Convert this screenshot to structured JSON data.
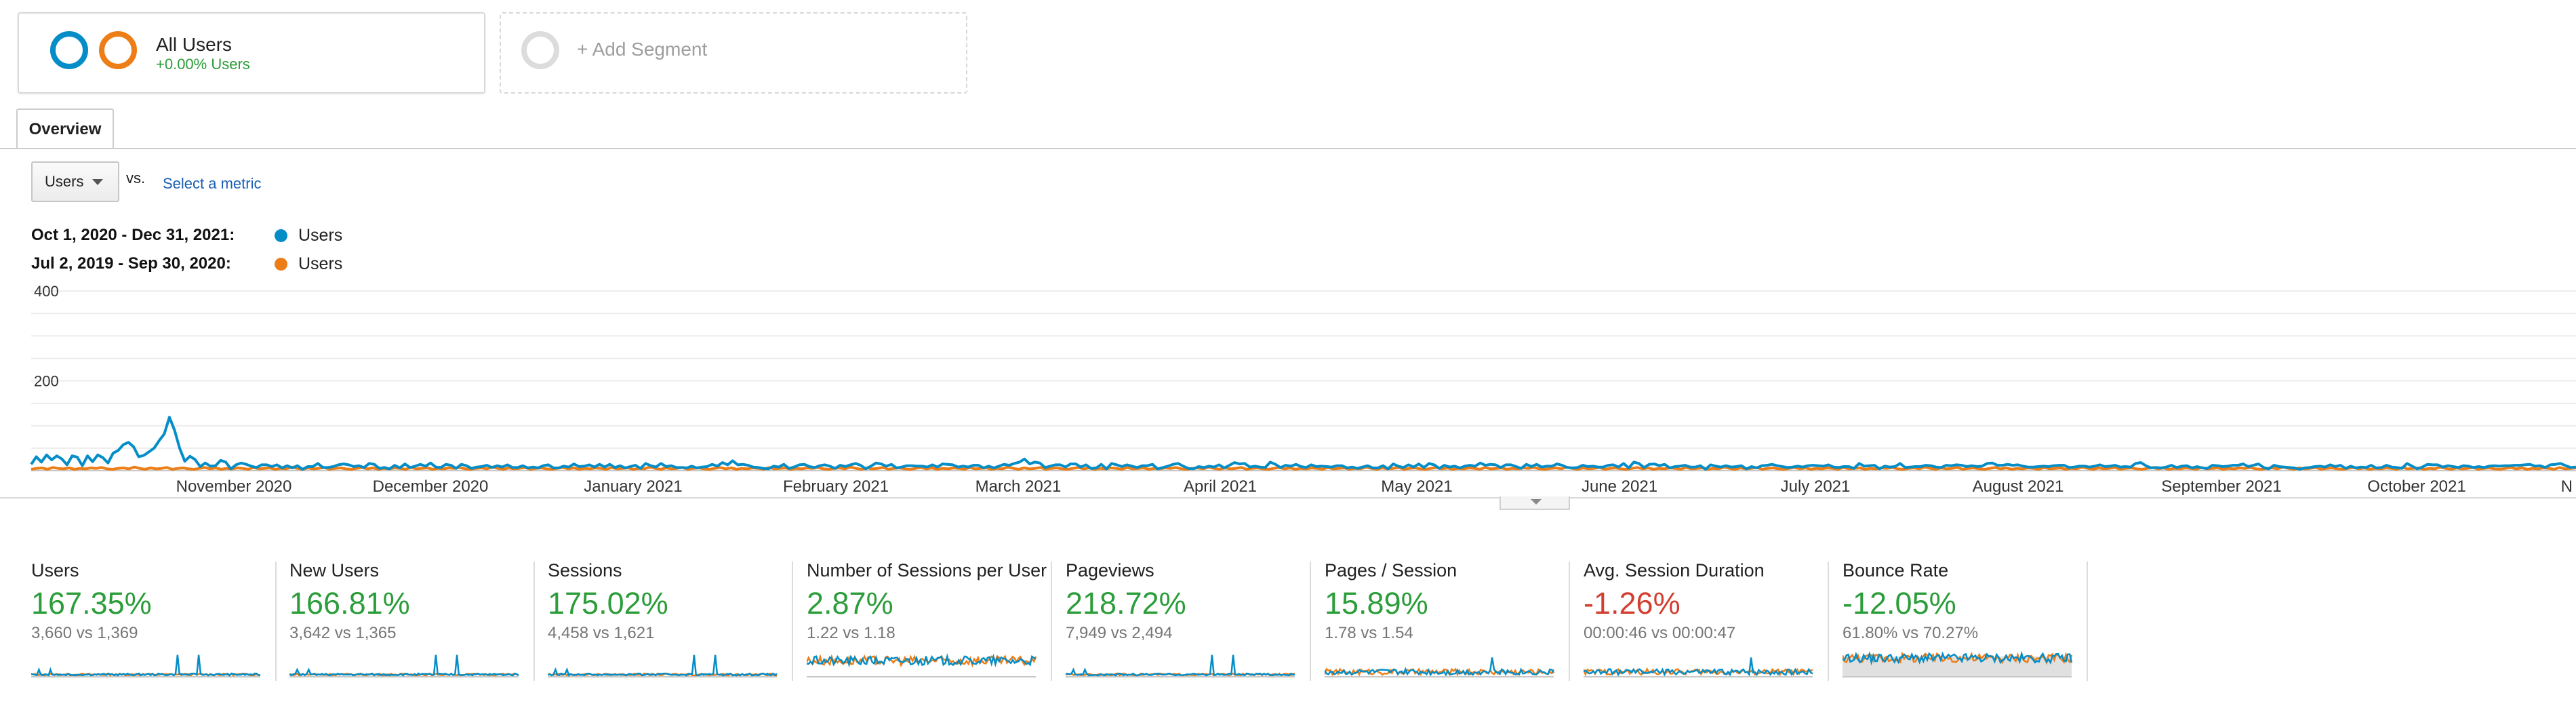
{
  "segments": {
    "all_users": {
      "title": "All Users",
      "subtitle": "+0.00% Users"
    },
    "add_segment": {
      "label": "+ Add Segment"
    }
  },
  "tabs": [
    {
      "label": "Overview"
    }
  ],
  "metric_selector": {
    "selected": "Users",
    "vs_label": "vs.",
    "select_link": "Select a metric"
  },
  "legend": [
    {
      "date_range": "Oct 1, 2020 - Dec 31, 2021:",
      "series": "Users",
      "color": "#058dc7"
    },
    {
      "date_range": "Jul 2, 2019 - Sep 30, 2020:",
      "series": "Users",
      "color": "#ed7e17"
    }
  ],
  "chart_data": {
    "type": "line",
    "y_tick_labels": [
      "400",
      "200"
    ],
    "x_tick_labels": [
      "November 2020",
      "December 2020",
      "January 2021",
      "February 2021",
      "March 2021",
      "April 2021",
      "May 2021",
      "June 2021",
      "July 2021",
      "August 2021",
      "September 2021",
      "October 2021",
      "N"
    ],
    "ylim": [
      0,
      420
    ],
    "series": [
      {
        "color": "#058dc7",
        "values": [
          14,
          31,
          19,
          35,
          24,
          33,
          26,
          13,
          33,
          30,
          11,
          33,
          20,
          35,
          29,
          17,
          39,
          45,
          58,
          63,
          53,
          31,
          34,
          42,
          50,
          67,
          82,
          119,
          90,
          50,
          21,
          32,
          25,
          9,
          17,
          10,
          11,
          23,
          19,
          4,
          13,
          17,
          14,
          10,
          7,
          13,
          13,
          9,
          13,
          6,
          11,
          6,
          11,
          3,
          9,
          9,
          16,
          7,
          7,
          9,
          13,
          15,
          13,
          9,
          11,
          7,
          16,
          14,
          5,
          7,
          4,
          12,
          6,
          15,
          7,
          10,
          14,
          10,
          17,
          8,
          7,
          14,
          12,
          5,
          14,
          11,
          5,
          8,
          9,
          12,
          7,
          11,
          8,
          13,
          7,
          7,
          11,
          6,
          8,
          6,
          11,
          13,
          6,
          6,
          10,
          8,
          15,
          9,
          10,
          13,
          8,
          14,
          8,
          14,
          7,
          11,
          6,
          9,
          12,
          5,
          16,
          11,
          8,
          16,
          9,
          11,
          7,
          7,
          6,
          10,
          6,
          8,
          9,
          14,
          10,
          18,
          13,
          22,
          13,
          14,
          12,
          8,
          7,
          5,
          4,
          10,
          8,
          14,
          5,
          8,
          13,
          14,
          9,
          7,
          11,
          13,
          10,
          5,
          12,
          9,
          13,
          16,
          12,
          4,
          10,
          17,
          15,
          10,
          14,
          6,
          8,
          11,
          11,
          10,
          10,
          8,
          13,
          8,
          15,
          14,
          13,
          8,
          10,
          8,
          12,
          12,
          6,
          10,
          6,
          10,
          14,
          12,
          16,
          19,
          26,
          15,
          19,
          17,
          7,
          10,
          13,
          13,
          8,
          15,
          15,
          8,
          13,
          5,
          6,
          14,
          4,
          16,
          13,
          9,
          13,
          10,
          7,
          11,
          11,
          14,
          4,
          7,
          10,
          14,
          16,
          10,
          5,
          4,
          9,
          7,
          10,
          8,
          13,
          6,
          12,
          18,
          15,
          16,
          8,
          10,
          8,
          7,
          19,
          14,
          7,
          12,
          10,
          14,
          9,
          7,
          13,
          9,
          10,
          9,
          8,
          11,
          11,
          6,
          8,
          5,
          8,
          11,
          6,
          6,
          11,
          4,
          15,
          10,
          7,
          13,
          8,
          15,
          7,
          16,
          13,
          5,
          12,
          8,
          10,
          6,
          10,
          12,
          10,
          17,
          12,
          14,
          13,
          7,
          13,
          13,
          9,
          5,
          14,
          9,
          14,
          8,
          10,
          10,
          15,
          12,
          7,
          6,
          7,
          12,
          9,
          10,
          8,
          8,
          12,
          13,
          8,
          16,
          6,
          19,
          16,
          7,
          14,
          15,
          11,
          14,
          6,
          9,
          10,
          12,
          8,
          8,
          11,
          3,
          13,
          10,
          8,
          11,
          8,
          9,
          11,
          4,
          9,
          6,
          11,
          12,
          14,
          11,
          9,
          7,
          8,
          10,
          8,
          11,
          12,
          11,
          10,
          13,
          8,
          7,
          9,
          9,
          5,
          16,
          10,
          11,
          12,
          4,
          10,
          8,
          9,
          16,
          7,
          8,
          9,
          9,
          12,
          11,
          8,
          7,
          12,
          11,
          13,
          12,
          9,
          11,
          9,
          10,
          16,
          17,
          12,
          12,
          14,
          12,
          13,
          10,
          8,
          8,
          9,
          10,
          9,
          11,
          12,
          12,
          7,
          8,
          10,
          10,
          8,
          10,
          13,
          9,
          10,
          12,
          8,
          9,
          8,
          16,
          18,
          11,
          6,
          7,
          6,
          8,
          12,
          7,
          10,
          11,
          6,
          9,
          6,
          5,
          12,
          11,
          9,
          10,
          12,
          12,
          15,
          9,
          12,
          15,
          7,
          4,
          12,
          9,
          8,
          7,
          6,
          3,
          6,
          7,
          9,
          10,
          8,
          13,
          9,
          12,
          5,
          10,
          6,
          8,
          7,
          12,
          6,
          7,
          12,
          8,
          7,
          5,
          16,
          10,
          4,
          8,
          14,
          13,
          13,
          8,
          11,
          9,
          7,
          11,
          10,
          7,
          9,
          7,
          10,
          11,
          10,
          11,
          11,
          12,
          12,
          13,
          14,
          10,
          11,
          7,
          13,
          14,
          16,
          11,
          7,
          8
        ]
      },
      {
        "color": "#ed7e17",
        "values": [
          3,
          5,
          6,
          3,
          7,
          5,
          4,
          6,
          3,
          5,
          4,
          6,
          5,
          7,
          4,
          3,
          5,
          6,
          4,
          8,
          5,
          3,
          6,
          4,
          5,
          7,
          3,
          5,
          6,
          4,
          3,
          5,
          7,
          4,
          6,
          3,
          5,
          4,
          6,
          5,
          3,
          7,
          4,
          5,
          6,
          3,
          5,
          4,
          8,
          5,
          3,
          6,
          4,
          5,
          7,
          3,
          5,
          6,
          4,
          3,
          5,
          7,
          4,
          6,
          3,
          5,
          4,
          6,
          5,
          3,
          7,
          4,
          5,
          6,
          3,
          5,
          4,
          6,
          5,
          7,
          4,
          3,
          5,
          6,
          4,
          8,
          5,
          3,
          6,
          4,
          5,
          7,
          3,
          5,
          6,
          4,
          3,
          5,
          7,
          4,
          6,
          3,
          5,
          4,
          6,
          5,
          3,
          7,
          4,
          5,
          6,
          3,
          5,
          4,
          8,
          5,
          3,
          6,
          4,
          5,
          7,
          3,
          5,
          6,
          4,
          3,
          5,
          7,
          4,
          6,
          3,
          5,
          4,
          6,
          5,
          3,
          7,
          4,
          5,
          6,
          3,
          5,
          4,
          6,
          5,
          7,
          4,
          3,
          5,
          6,
          4,
          8,
          5,
          3,
          6,
          4,
          5,
          7,
          3,
          5,
          6,
          4,
          3,
          5,
          7,
          4,
          6,
          3,
          5,
          4,
          6,
          5,
          3,
          7,
          4,
          5,
          6,
          3,
          5,
          4,
          8,
          5,
          3,
          6,
          4,
          5,
          7,
          3,
          5,
          6,
          4,
          3,
          5,
          7,
          4,
          6,
          3,
          5,
          4,
          6,
          5,
          3,
          7,
          4,
          5,
          6,
          3,
          5,
          4,
          6,
          5,
          7,
          4,
          3,
          5,
          6,
          4,
          8,
          5,
          3,
          6,
          4,
          5,
          7,
          3,
          5,
          6,
          4,
          3,
          5,
          7,
          4,
          6,
          3,
          5,
          4,
          6,
          5,
          3,
          7,
          4,
          5,
          6,
          3,
          5,
          4,
          8,
          5,
          3,
          6,
          4,
          5,
          7,
          3,
          5,
          6,
          4,
          3,
          5,
          7,
          4,
          6,
          3,
          5,
          4,
          6,
          5,
          3,
          7,
          4,
          5,
          6,
          3,
          5,
          4,
          6,
          5,
          7,
          4,
          3,
          5,
          6,
          4,
          8,
          5,
          3,
          6,
          4,
          5,
          7,
          3,
          5,
          6,
          4,
          3,
          5,
          7,
          4,
          6,
          3,
          5,
          4,
          6,
          5,
          3,
          7,
          4,
          5,
          6,
          3,
          5,
          4,
          8,
          5,
          3,
          6,
          4,
          5,
          7,
          3,
          5,
          6,
          4,
          3,
          5,
          7,
          4,
          6,
          3,
          5,
          4,
          6,
          5,
          3,
          7,
          4,
          5,
          6,
          3,
          5,
          4,
          6,
          5,
          7,
          4,
          3,
          5,
          6,
          4,
          8,
          5,
          3,
          6,
          4,
          5,
          7,
          3,
          5,
          6,
          4,
          3,
          5,
          7,
          4,
          6,
          3,
          5,
          4,
          6,
          5,
          3,
          7,
          4,
          5,
          6,
          3,
          5,
          4,
          8,
          5,
          3,
          6,
          4,
          5,
          7,
          3,
          5,
          6,
          4,
          3,
          5,
          7,
          4,
          6,
          3,
          5,
          4,
          6,
          5,
          3,
          7,
          4,
          5,
          6,
          3,
          5,
          4,
          6,
          5,
          7,
          4,
          3,
          5,
          6,
          4,
          8,
          5,
          3,
          6,
          4,
          5,
          7,
          3,
          5,
          6,
          4,
          3,
          5,
          7,
          4,
          6,
          3,
          5,
          4,
          6,
          5,
          3,
          7,
          4,
          5,
          6,
          3,
          5,
          4,
          8,
          5,
          3,
          6,
          4,
          5,
          7,
          3,
          5,
          6,
          4,
          3,
          5,
          7,
          4,
          6,
          3,
          5,
          4,
          6,
          5,
          3,
          7,
          4,
          5,
          6
        ]
      }
    ]
  },
  "scorecards": [
    {
      "name": "Users",
      "change": "167.35%",
      "comparison": "3,660 vs 1,369",
      "trend": "positive",
      "style": "sparse"
    },
    {
      "name": "New Users",
      "change": "166.81%",
      "comparison": "3,642 vs 1,365",
      "trend": "positive",
      "style": "sparse"
    },
    {
      "name": "Sessions",
      "change": "175.02%",
      "comparison": "4,458 vs 1,621",
      "trend": "positive",
      "style": "sparse"
    },
    {
      "name": "Number of Sessions per User",
      "change": "2.87%",
      "comparison": "1.22 vs 1.18",
      "trend": "positive",
      "style": "dense"
    },
    {
      "name": "Pageviews",
      "change": "218.72%",
      "comparison": "7,949 vs 2,494",
      "trend": "positive",
      "style": "sparse"
    },
    {
      "name": "Pages / Session",
      "change": "15.89%",
      "comparison": "1.78 vs 1.54",
      "trend": "positive",
      "style": "medium"
    },
    {
      "name": "Avg. Session Duration",
      "change": "-1.26%",
      "comparison": "00:00:46 vs 00:00:47",
      "trend": "negative",
      "style": "medium"
    },
    {
      "name": "Bounce Rate",
      "change": "-12.05%",
      "comparison": "61.80% vs 70.27%",
      "trend": "positive",
      "style": "dense-high"
    }
  ],
  "colors": {
    "positive": "#2b9d3a",
    "negative": "#d23f31",
    "series_current": "#058dc7",
    "series_previous": "#ed7e17"
  }
}
